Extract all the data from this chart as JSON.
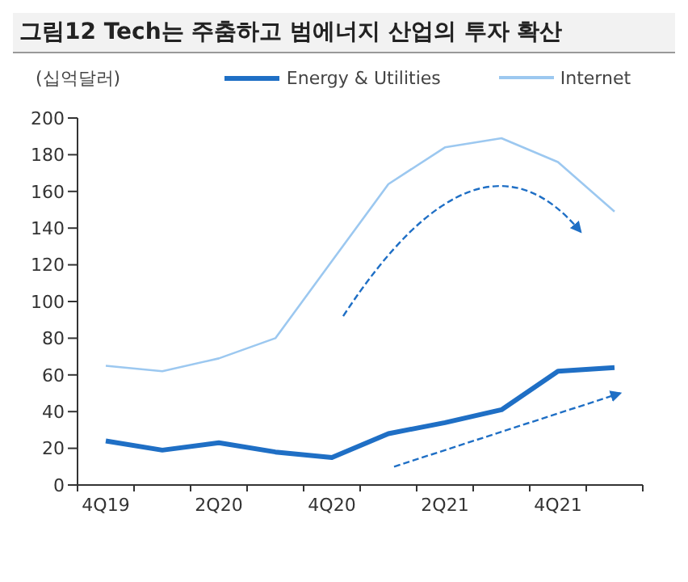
{
  "chart_data": {
    "type": "line",
    "title": "그림12  Tech는 주춤하고 범에너지 산업의 투자 확산",
    "ylabel": "(십억달러)",
    "categories": [
      "4Q19",
      null,
      "2Q20",
      null,
      "4Q20",
      null,
      "2Q21",
      null,
      "4Q21",
      null
    ],
    "series": [
      {
        "name": "Energy & Utilities",
        "color": "#1f6fc5",
        "values": [
          24,
          19,
          23,
          18,
          15,
          28,
          34,
          41,
          62,
          64
        ]
      },
      {
        "name": "Internet",
        "color": "#9cc8f0",
        "values": [
          65,
          62,
          69,
          80,
          122,
          164,
          184,
          189,
          176,
          149
        ]
      }
    ],
    "ylim": [
      0,
      200
    ],
    "yticks": [
      0,
      20,
      40,
      60,
      80,
      100,
      120,
      140,
      160,
      180,
      200
    ],
    "legend": "top",
    "marker": "none",
    "line_style": "solid"
  }
}
